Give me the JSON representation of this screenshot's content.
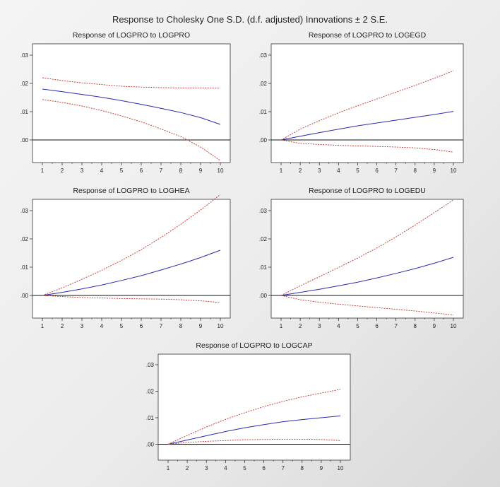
{
  "main_title": "Response to Cholesky One S.D. (d.f. adjusted) Innovations ± 2 S.E.",
  "colors": {
    "response": "#2b2bb0",
    "bands": "#c0302a",
    "zero_line": "#111111",
    "frame": "#333333"
  },
  "chart_data": [
    {
      "type": "line",
      "title": "Response of LOGPRO to LOGPRO",
      "x": [
        1,
        2,
        3,
        4,
        5,
        6,
        7,
        8,
        9,
        10
      ],
      "yticks": [
        ".00",
        ".01",
        ".02",
        ".03"
      ],
      "ylim": [
        -0.008,
        0.034
      ],
      "series": [
        {
          "role": "response",
          "values": [
            0.018,
            0.0171,
            0.0161,
            0.0151,
            0.0139,
            0.0126,
            0.0112,
            0.0097,
            0.0079,
            0.0055
          ]
        },
        {
          "role": "upper band",
          "values": [
            0.022,
            0.021,
            0.0202,
            0.0196,
            0.019,
            0.0187,
            0.0185,
            0.0184,
            0.0184,
            0.0183
          ]
        },
        {
          "role": "lower band",
          "values": [
            0.0143,
            0.0133,
            0.012,
            0.0104,
            0.0085,
            0.0064,
            0.0039,
            0.0012,
            -0.0025,
            -0.0073
          ]
        }
      ]
    },
    {
      "type": "line",
      "title": "Response of LOGPRO to LOGEGD",
      "x": [
        1,
        2,
        3,
        4,
        5,
        6,
        7,
        8,
        9,
        10
      ],
      "yticks": [
        ".00",
        ".01",
        ".02",
        ".03"
      ],
      "ylim": [
        -0.008,
        0.034
      ],
      "series": [
        {
          "role": "response",
          "values": [
            0,
            0.0013,
            0.0026,
            0.0038,
            0.005,
            0.006,
            0.007,
            0.008,
            0.009,
            0.0101
          ]
        },
        {
          "role": "upper band",
          "values": [
            0,
            0.0038,
            0.0068,
            0.0096,
            0.0121,
            0.0145,
            0.0169,
            0.0193,
            0.0218,
            0.0245
          ]
        },
        {
          "role": "lower band",
          "values": [
            0,
            -0.0012,
            -0.0016,
            -0.0019,
            -0.0021,
            -0.0023,
            -0.0025,
            -0.0028,
            -0.0034,
            -0.0043
          ]
        }
      ]
    },
    {
      "type": "line",
      "title": "Response of LOGPRO to LOGHEA",
      "x": [
        1,
        2,
        3,
        4,
        5,
        6,
        7,
        8,
        9,
        10
      ],
      "yticks": [
        ".00",
        ".01",
        ".02",
        ".03"
      ],
      "ylim": [
        -0.008,
        0.034
      ],
      "series": [
        {
          "role": "response",
          "values": [
            0,
            0.0011,
            0.0023,
            0.0037,
            0.0053,
            0.007,
            0.009,
            0.0111,
            0.0134,
            0.016
          ]
        },
        {
          "role": "upper band",
          "values": [
            0,
            0.0027,
            0.0057,
            0.0089,
            0.0124,
            0.0162,
            0.0205,
            0.0252,
            0.0302,
            0.0357
          ]
        },
        {
          "role": "lower band",
          "values": [
            0,
            -0.0004,
            -0.0007,
            -0.0009,
            -0.0011,
            -0.0012,
            -0.0013,
            -0.0015,
            -0.0019,
            -0.0025
          ]
        }
      ]
    },
    {
      "type": "line",
      "title": "Response of LOGPRO to LOGEDU",
      "x": [
        1,
        2,
        3,
        4,
        5,
        6,
        7,
        8,
        9,
        10
      ],
      "yticks": [
        ".00",
        ".01",
        ".02",
        ".03"
      ],
      "ylim": [
        -0.008,
        0.034
      ],
      "series": [
        {
          "role": "response",
          "values": [
            0,
            0.0011,
            0.0022,
            0.0034,
            0.0047,
            0.0062,
            0.0078,
            0.0095,
            0.0114,
            0.0135
          ]
        },
        {
          "role": "upper band",
          "values": [
            0,
            0.0034,
            0.0066,
            0.0099,
            0.0132,
            0.0168,
            0.0207,
            0.0249,
            0.0293,
            0.0338
          ]
        },
        {
          "role": "lower band",
          "values": [
            0,
            -0.0015,
            -0.0024,
            -0.0031,
            -0.0037,
            -0.0043,
            -0.0049,
            -0.0055,
            -0.0062,
            -0.0069
          ]
        }
      ]
    },
    {
      "type": "line",
      "title": "Response of LOGPRO to LOGCAP",
      "x": [
        1,
        2,
        3,
        4,
        5,
        6,
        7,
        8,
        9,
        10
      ],
      "yticks": [
        ".00",
        ".01",
        ".02",
        ".03"
      ],
      "ylim": [
        -0.006,
        0.034
      ],
      "series": [
        {
          "role": "response",
          "values": [
            0,
            0.0016,
            0.0032,
            0.0048,
            0.0062,
            0.0074,
            0.0085,
            0.0093,
            0.01,
            0.0107
          ]
        },
        {
          "role": "upper band",
          "values": [
            0,
            0.0033,
            0.0065,
            0.0094,
            0.0119,
            0.0142,
            0.0162,
            0.0179,
            0.0193,
            0.0207
          ]
        },
        {
          "role": "lower band",
          "values": [
            0,
            0.0007,
            0.0011,
            0.0014,
            0.0017,
            0.0018,
            0.0019,
            0.0019,
            0.0018,
            0.0014
          ]
        }
      ]
    }
  ]
}
